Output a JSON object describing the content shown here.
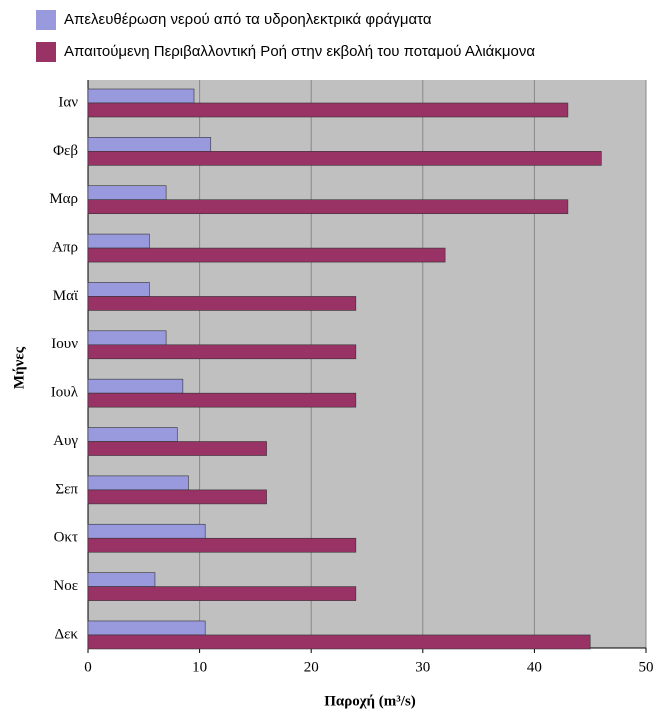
{
  "chart_data": {
    "type": "hbar",
    "categories": [
      "Ιαν",
      "Φεβ",
      "Μαρ",
      "Απρ",
      "Μαϊ",
      "Ιουν",
      "Ιουλ",
      "Αυγ",
      "Σεπ",
      "Οκτ",
      "Νοε",
      "Δεκ"
    ],
    "series": [
      {
        "name": "Απελευθέρωση νερού από τα υδροηλεκτρικά φράγματα",
        "color": "#9999dd",
        "values": [
          9.5,
          11,
          7,
          5.5,
          5.5,
          7,
          8.5,
          8,
          9,
          10.5,
          6,
          10.5
        ]
      },
      {
        "name": "Απαιτούμενη Περιβαλλοντική Ροή στην εκβολή του ποταμού Αλιάκμονα",
        "color": "#993366",
        "values": [
          43,
          46,
          43,
          32,
          24,
          24,
          24,
          16,
          16,
          24,
          24,
          45
        ]
      }
    ],
    "xlabel": "Παροχή (m³/s)",
    "ylabel": "Μήνες",
    "xlim": [
      0,
      50
    ],
    "xticks": [
      0,
      10,
      20,
      30,
      40,
      50
    ],
    "grid": true,
    "legend": "top"
  }
}
